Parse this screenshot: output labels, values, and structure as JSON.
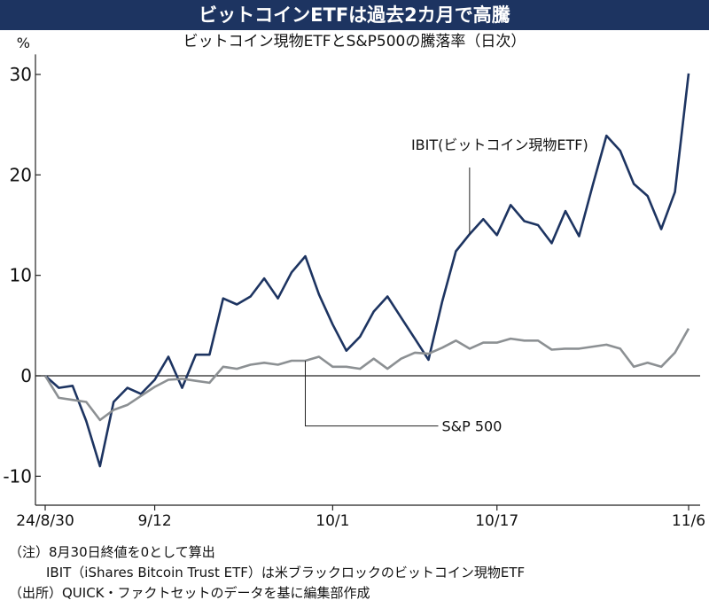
{
  "title": "ビットコインETFは過去2カ月で高騰",
  "subtitle": "ビットコイン現物ETFとS&P500の騰落率（日次）",
  "notes": [
    "（注）8月30日終値を0として算出",
    "IBIT（iShares Bitcoin Trust ETF）は米ブラックロックのビットコイン現物ETF",
    "（出所）QUICK・ファクトセットのデータを基に編集部作成"
  ],
  "colors": {
    "header": "#1d3461",
    "ibit": "#1d3461",
    "sp500": "#8c9093",
    "axis": "#222222"
  },
  "chart_data": {
    "type": "line",
    "y_unit": "%",
    "ylim": [
      -12,
      32
    ],
    "yticks": [
      -10,
      0,
      10,
      20,
      30
    ],
    "ytick_labels": [
      "-10",
      "0",
      "10",
      "20",
      "30"
    ],
    "xlim": [
      0,
      47
    ],
    "x_tick_labels": [
      {
        "x": 0,
        "label": "24/8/30"
      },
      {
        "x": 8,
        "label": "9/12"
      },
      {
        "x": 21,
        "label": "10/1"
      },
      {
        "x": 33,
        "label": "10/17"
      },
      {
        "x": 47,
        "label": "11/6"
      }
    ],
    "grid": false,
    "series": [
      {
        "name": "IBIT(ビットコイン現物ETF)",
        "values": [
          0,
          -1.2,
          -1,
          -4.5,
          -9,
          -2.6,
          -1.2,
          -1.8,
          -0.4,
          1.9,
          -1.2,
          2.1,
          2.1,
          7.7,
          7.1,
          7.9,
          9.7,
          7.7,
          10.3,
          11.9,
          8.1,
          5.1,
          2.5,
          3.9,
          6.4,
          7.9,
          5.8,
          3.7,
          1.6,
          7.4,
          12.4,
          14.1,
          15.6,
          14,
          17,
          15.4,
          15,
          13.2,
          16.4,
          13.9,
          19,
          23.9,
          22.4,
          19.1,
          17.9,
          14.6,
          18.3,
          30.1
        ]
      },
      {
        "name": "S&P 500",
        "values": [
          0,
          -2.2,
          -2.4,
          -2.6,
          -4.4,
          -3.4,
          -2.9,
          -2,
          -1.1,
          -0.4,
          -0.3,
          -0.5,
          -0.7,
          0.9,
          0.7,
          1.1,
          1.3,
          1.1,
          1.5,
          1.5,
          1.9,
          0.9,
          0.9,
          0.7,
          1.7,
          0.7,
          1.7,
          2.3,
          2.2,
          2.8,
          3.5,
          2.7,
          3.3,
          3.3,
          3.7,
          3.5,
          3.5,
          2.6,
          2.7,
          2.7,
          2.9,
          3.1,
          2.7,
          0.9,
          1.3,
          0.9,
          2.3,
          4.7
        ]
      }
    ],
    "annotations": [
      {
        "series": 0,
        "text": "IBIT(ビットコイン現物ETF)",
        "x": 31,
        "label_y": 22.5
      },
      {
        "series": 1,
        "text": "S&P 500",
        "x": 19,
        "label_y": -5
      }
    ]
  }
}
